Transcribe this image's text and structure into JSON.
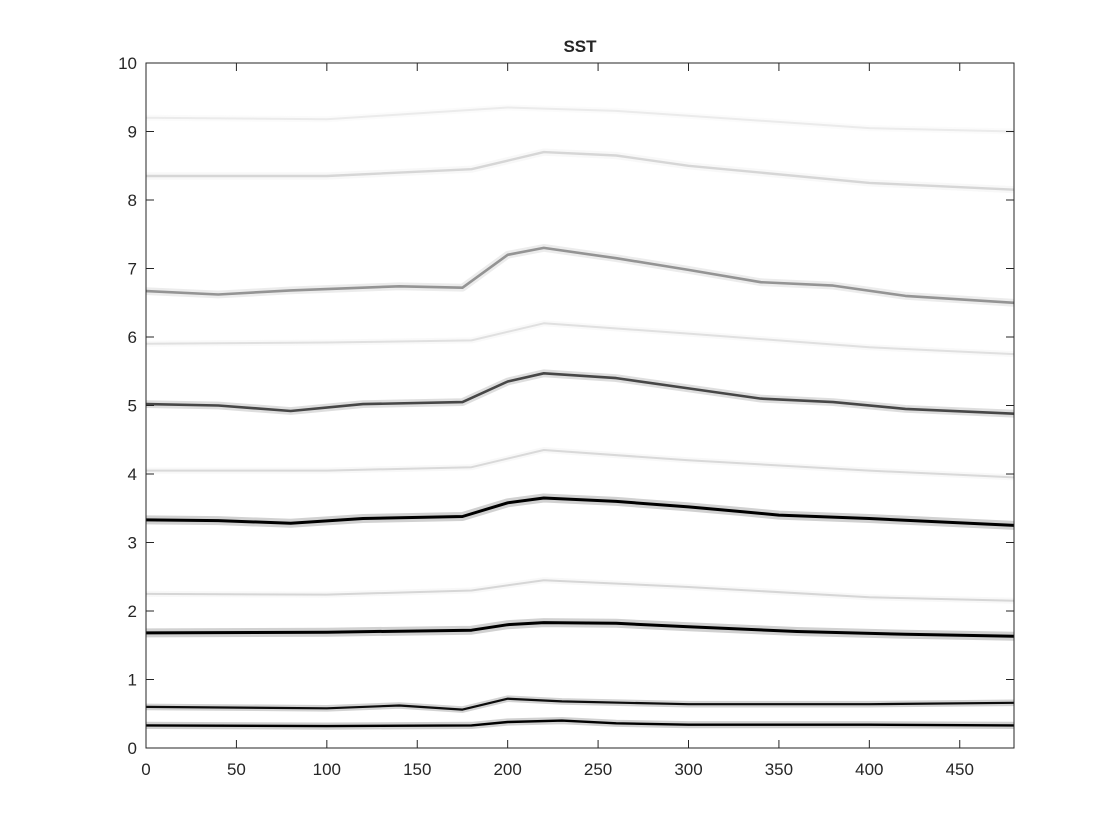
{
  "chart_data": {
    "type": "heatmap",
    "title": "SST",
    "xlabel": "",
    "ylabel": "",
    "xlim": [
      0,
      480
    ],
    "ylim": [
      0,
      10
    ],
    "x_ticks": [
      "0",
      "50",
      "100",
      "150",
      "200",
      "250",
      "300",
      "350",
      "400",
      "450"
    ],
    "y_ticks": [
      "0",
      "1",
      "2",
      "3",
      "4",
      "5",
      "6",
      "7",
      "8",
      "9",
      "10"
    ],
    "colormap": "gray-reversed",
    "grid": false,
    "ridges": [
      {
        "points": [
          [
            0,
            0.33
          ],
          [
            100,
            0.32
          ],
          [
            180,
            0.33
          ],
          [
            200,
            0.38
          ],
          [
            230,
            0.4
          ],
          [
            260,
            0.36
          ],
          [
            300,
            0.34
          ],
          [
            400,
            0.34
          ],
          [
            480,
            0.33
          ]
        ],
        "intensity": 1.0,
        "width": 2.4
      },
      {
        "points": [
          [
            0,
            0.6
          ],
          [
            100,
            0.58
          ],
          [
            140,
            0.62
          ],
          [
            175,
            0.56
          ],
          [
            200,
            0.72
          ],
          [
            230,
            0.68
          ],
          [
            300,
            0.64
          ],
          [
            400,
            0.64
          ],
          [
            480,
            0.66
          ]
        ],
        "intensity": 0.95,
        "width": 2.2
      },
      {
        "points": [
          [
            0,
            1.68
          ],
          [
            100,
            1.69
          ],
          [
            180,
            1.72
          ],
          [
            200,
            1.8
          ],
          [
            220,
            1.83
          ],
          [
            260,
            1.82
          ],
          [
            300,
            1.77
          ],
          [
            360,
            1.7
          ],
          [
            420,
            1.66
          ],
          [
            480,
            1.63
          ]
        ],
        "intensity": 1.0,
        "width": 3.0
      },
      {
        "points": [
          [
            0,
            3.33
          ],
          [
            40,
            3.32
          ],
          [
            80,
            3.28
          ],
          [
            120,
            3.35
          ],
          [
            175,
            3.38
          ],
          [
            200,
            3.58
          ],
          [
            220,
            3.65
          ],
          [
            260,
            3.6
          ],
          [
            300,
            3.52
          ],
          [
            330,
            3.45
          ],
          [
            350,
            3.4
          ],
          [
            400,
            3.35
          ],
          [
            480,
            3.25
          ]
        ],
        "intensity": 1.0,
        "width": 3.0
      },
      {
        "points": [
          [
            0,
            5.02
          ],
          [
            40,
            5.0
          ],
          [
            80,
            4.92
          ],
          [
            120,
            5.02
          ],
          [
            175,
            5.05
          ],
          [
            200,
            5.35
          ],
          [
            220,
            5.47
          ],
          [
            260,
            5.4
          ],
          [
            300,
            5.25
          ],
          [
            340,
            5.1
          ],
          [
            380,
            5.05
          ],
          [
            420,
            4.95
          ],
          [
            480,
            4.88
          ]
        ],
        "intensity": 0.72,
        "width": 2.6
      },
      {
        "points": [
          [
            0,
            6.67
          ],
          [
            40,
            6.62
          ],
          [
            80,
            6.68
          ],
          [
            140,
            6.74
          ],
          [
            175,
            6.72
          ],
          [
            200,
            7.2
          ],
          [
            220,
            7.3
          ],
          [
            260,
            7.15
          ],
          [
            300,
            6.98
          ],
          [
            340,
            6.8
          ],
          [
            380,
            6.75
          ],
          [
            420,
            6.6
          ],
          [
            480,
            6.5
          ]
        ],
        "intensity": 0.42,
        "width": 2.6
      },
      {
        "points": [
          [
            0,
            8.35
          ],
          [
            100,
            8.35
          ],
          [
            180,
            8.45
          ],
          [
            220,
            8.7
          ],
          [
            260,
            8.65
          ],
          [
            300,
            8.5
          ],
          [
            400,
            8.25
          ],
          [
            480,
            8.15
          ]
        ],
        "intensity": 0.16,
        "width": 2.4
      },
      {
        "points": [
          [
            0,
            2.25
          ],
          [
            100,
            2.24
          ],
          [
            180,
            2.3
          ],
          [
            220,
            2.45
          ],
          [
            300,
            2.35
          ],
          [
            400,
            2.2
          ],
          [
            480,
            2.15
          ]
        ],
        "intensity": 0.16,
        "width": 2.0
      },
      {
        "points": [
          [
            0,
            4.05
          ],
          [
            100,
            4.05
          ],
          [
            180,
            4.1
          ],
          [
            220,
            4.35
          ],
          [
            300,
            4.2
          ],
          [
            400,
            4.05
          ],
          [
            480,
            3.95
          ]
        ],
        "intensity": 0.15,
        "width": 2.0
      },
      {
        "points": [
          [
            0,
            5.9
          ],
          [
            100,
            5.92
          ],
          [
            180,
            5.95
          ],
          [
            220,
            6.2
          ],
          [
            300,
            6.05
          ],
          [
            400,
            5.85
          ],
          [
            480,
            5.75
          ]
        ],
        "intensity": 0.12,
        "width": 2.0
      },
      {
        "points": [
          [
            0,
            9.2
          ],
          [
            100,
            9.18
          ],
          [
            200,
            9.35
          ],
          [
            260,
            9.3
          ],
          [
            400,
            9.05
          ],
          [
            480,
            9.0
          ]
        ],
        "intensity": 0.08,
        "width": 2.0
      }
    ]
  }
}
